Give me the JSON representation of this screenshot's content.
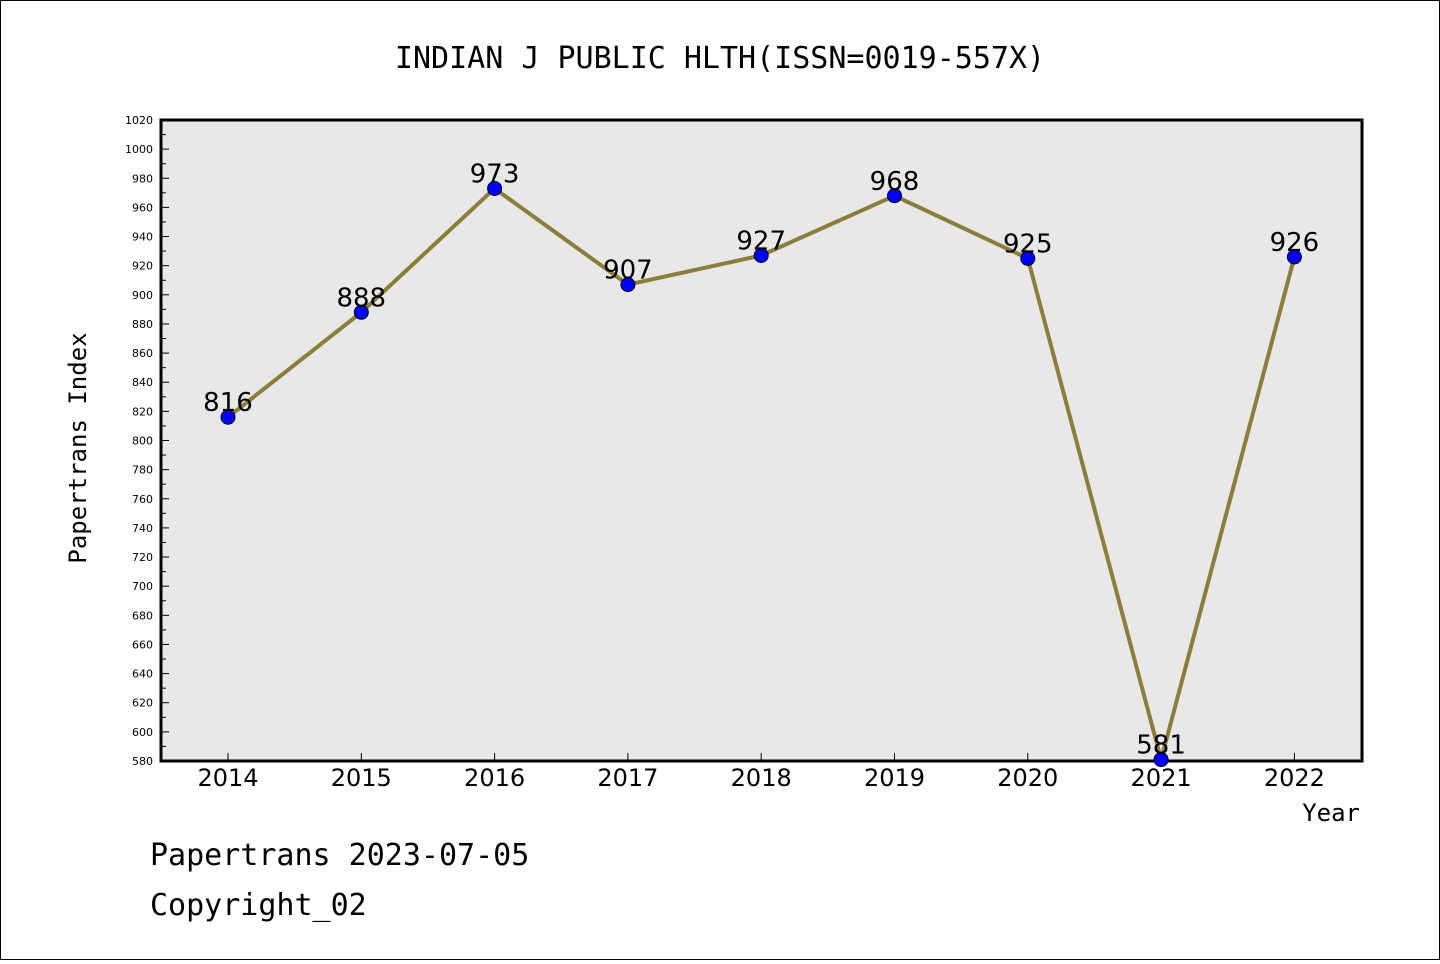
{
  "chart_data": {
    "type": "line",
    "title": "INDIAN J PUBLIC HLTH(ISSN=0019-557X)",
    "xlabel": "Year",
    "ylabel": "Papertrans Index",
    "categories": [
      "2014",
      "2015",
      "2016",
      "2017",
      "2018",
      "2019",
      "2020",
      "2021",
      "2022"
    ],
    "values": [
      816,
      888,
      973,
      907,
      927,
      968,
      925,
      581,
      926
    ],
    "ylim": [
      580,
      1020
    ],
    "ytick_step": 20,
    "grid": false,
    "plot_background": "#e8e8e8",
    "line_color": "#8b7d3a",
    "marker_color": "#0000ff"
  },
  "footer": {
    "line1": "Papertrans 2023-07-05",
    "line2": "Copyright_02"
  }
}
